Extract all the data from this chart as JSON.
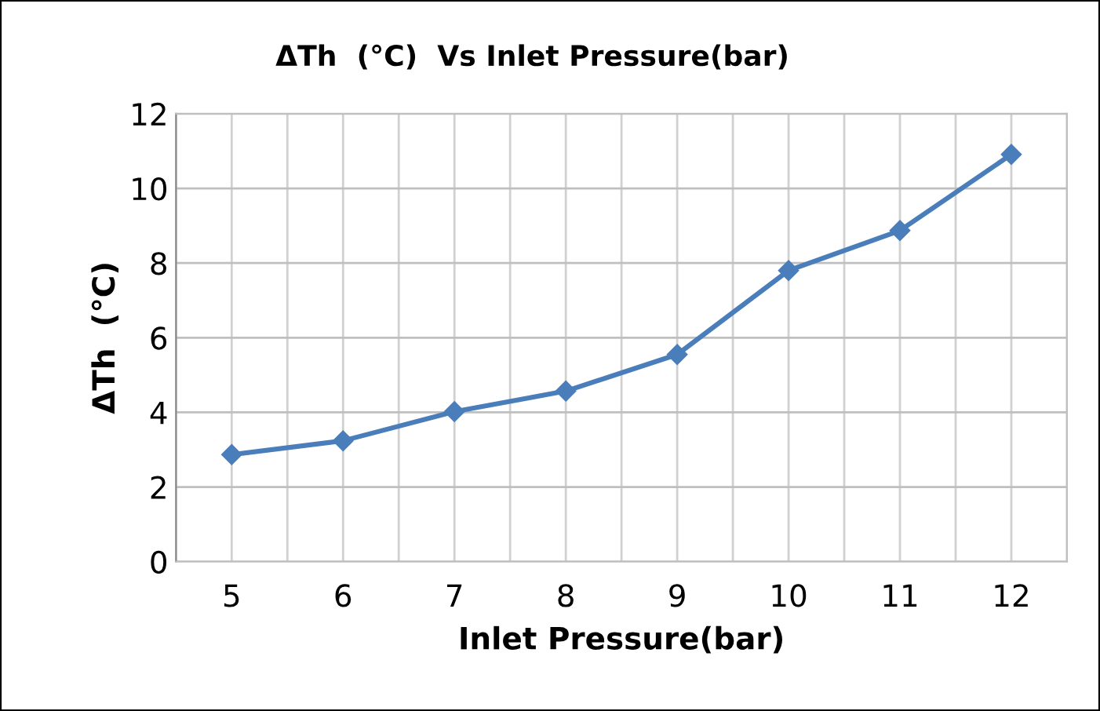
{
  "chart_data": {
    "type": "line",
    "title": "ΔTh  (°C)  Vs Inlet Pressure(bar)",
    "xlabel": "Inlet Pressure(bar)",
    "ylabel": "ΔTh  (°C)",
    "categories": [
      "5",
      "6",
      "7",
      "8",
      "9",
      "10",
      "11",
      "12"
    ],
    "series": [
      {
        "color": "#4a7ebb",
        "values": [
          2.87,
          3.24,
          4.02,
          4.57,
          5.55,
          7.8,
          8.87,
          10.91
        ]
      }
    ],
    "ylim": [
      0,
      12
    ],
    "yticks": [
      0,
      2,
      4,
      6,
      8,
      10,
      12
    ],
    "grid": true,
    "marker": "diamond",
    "line_style": "solid"
  }
}
